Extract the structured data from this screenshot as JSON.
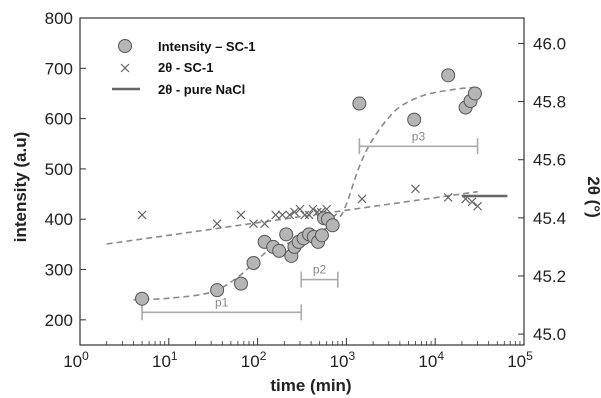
{
  "chart_data": {
    "type": "scatter",
    "xlabel": "time (min)",
    "ylabel": "intensity (a.u)",
    "y2label": "2θ (°)",
    "x_scale": "log",
    "xlim": [
      1,
      100000
    ],
    "ylim": [
      150,
      800
    ],
    "y2lim": [
      44.9625,
      46.0875
    ],
    "x_ticks": [
      {
        "value": 1,
        "base": "10",
        "exp": "0"
      },
      {
        "value": 10,
        "base": "10",
        "exp": "1"
      },
      {
        "value": 100,
        "base": "10",
        "exp": "2"
      },
      {
        "value": 1000,
        "base": "10",
        "exp": "3"
      },
      {
        "value": 10000,
        "base": "10",
        "exp": "4"
      },
      {
        "value": 100000,
        "base": "10",
        "exp": "5"
      }
    ],
    "y_ticks": [
      200,
      300,
      400,
      500,
      600,
      700,
      800
    ],
    "y2_ticks": [
      "45.0",
      "45.2",
      "45.4",
      "45.6",
      "45.8",
      "46.0"
    ],
    "legend": {
      "position": "top-left",
      "entries": [
        {
          "label": "Intensity – SC-1",
          "marker": "circle"
        },
        {
          "label": "2θ - SC-1",
          "marker": "cross"
        },
        {
          "label": "2θ - pure NaCl",
          "marker": "line"
        }
      ]
    },
    "series": [
      {
        "id": "intensity",
        "axis": "left",
        "x": [
          5,
          35,
          65,
          90,
          120,
          150,
          175,
          210,
          240,
          260,
          290,
          330,
          380,
          430,
          480,
          530,
          560,
          620,
          700,
          1400,
          5800,
          14000,
          22000,
          25000,
          28000
        ],
        "y": [
          242,
          259,
          272,
          313,
          355,
          345,
          337,
          370,
          327,
          345,
          355,
          362,
          370,
          365,
          355,
          368,
          402,
          400,
          388,
          630,
          598,
          686,
          622,
          635,
          650
        ]
      },
      {
        "id": "theta_sc1",
        "axis": "right",
        "x": [
          5,
          35,
          65,
          90,
          120,
          160,
          190,
          230,
          260,
          300,
          340,
          380,
          420,
          470,
          520,
          600,
          700,
          1500,
          6000,
          14000,
          22000,
          26000,
          30000
        ],
        "y": [
          45.41,
          45.38,
          45.41,
          45.38,
          45.38,
          45.41,
          45.41,
          45.41,
          45.42,
          45.43,
          45.41,
          45.41,
          45.43,
          45.42,
          45.42,
          45.43,
          45.4,
          45.465,
          45.5,
          45.47,
          45.465,
          45.455,
          45.44
        ]
      },
      {
        "id": "theta_nacl",
        "axis": "right",
        "x": [
          20000,
          65000
        ],
        "y": [
          45.475,
          45.475
        ]
      }
    ],
    "fit_intensity": {
      "x": [
        4,
        10,
        30,
        60,
        100,
        150,
        200,
        300,
        500,
        800,
        1000,
        1400,
        2000,
        3500,
        6000,
        10000,
        20000,
        30000
      ],
      "y": [
        240,
        243,
        255,
        285,
        320,
        345,
        350,
        360,
        375,
        400,
        430,
        505,
        560,
        615,
        640,
        652,
        660,
        662
      ]
    },
    "fit_theta": {
      "x": [
        2,
        30000
      ],
      "y": [
        45.31,
        45.49
      ]
    },
    "periods": [
      {
        "label": "p1",
        "x_start": 5,
        "x_end": 310,
        "y": 215
      },
      {
        "label": "p2",
        "x_start": 310,
        "x_end": 800,
        "y": 280
      },
      {
        "label": "p3",
        "x_start": 1400,
        "x_end": 30000,
        "y": 545
      }
    ]
  }
}
